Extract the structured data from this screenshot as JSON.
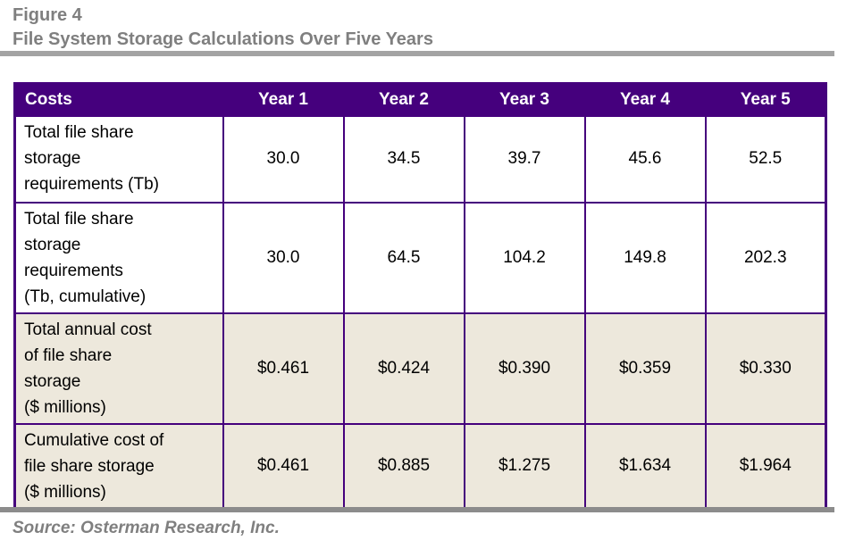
{
  "figure": {
    "label": "Figure 4",
    "title": "File System Storage Calculations Over Five Years"
  },
  "table": {
    "header": {
      "costs": "Costs",
      "years": [
        "Year 1",
        "Year 2",
        "Year 3",
        "Year 4",
        "Year 5"
      ]
    },
    "rows": [
      {
        "label": "Total file share\nstorage\nrequirements (Tb)",
        "values": [
          "30.0",
          "34.5",
          "39.7",
          "45.6",
          "52.5"
        ],
        "shaded": false
      },
      {
        "label": "Total file share\nstorage\nrequirements\n(Tb, cumulative)",
        "values": [
          "30.0",
          "64.5",
          "104.2",
          "149.8",
          "202.3"
        ],
        "shaded": false
      },
      {
        "label": "Total annual cost\nof file share\nstorage\n($ millions)",
        "values": [
          "$0.461",
          "$0.424",
          "$0.390",
          "$0.359",
          "$0.330"
        ],
        "shaded": true
      },
      {
        "label": "Cumulative cost of\nfile share storage\n($ millions)",
        "values": [
          "$0.461",
          "$0.885",
          "$1.275",
          "$1.634",
          "$1.964"
        ],
        "shaded": true
      }
    ]
  },
  "footer": {
    "source": "Source: Osterman Research, Inc."
  },
  "colors": {
    "header_purple": "#45007D",
    "border_purple": "#45007D",
    "row_beige": "#EDE8DC",
    "title_gray": "#7F7F7F",
    "rule_gray": "#A3A3A3",
    "footer_rule_gray": "#8C8C8C"
  },
  "chart_data": {
    "type": "table",
    "title": "File System Storage Calculations Over Five Years",
    "categories": [
      "Year 1",
      "Year 2",
      "Year 3",
      "Year 4",
      "Year 5"
    ],
    "series": [
      {
        "name": "Total file share storage requirements (Tb)",
        "values": [
          30.0,
          34.5,
          39.7,
          45.6,
          52.5
        ]
      },
      {
        "name": "Total file share storage requirements (Tb, cumulative)",
        "values": [
          30.0,
          64.5,
          104.2,
          149.8,
          202.3
        ]
      },
      {
        "name": "Total annual cost of file share storage ($ millions)",
        "values": [
          0.461,
          0.424,
          0.39,
          0.359,
          0.33
        ]
      },
      {
        "name": "Cumulative cost of file share storage ($ millions)",
        "values": [
          0.461,
          0.885,
          1.275,
          1.634,
          1.964
        ]
      }
    ]
  }
}
